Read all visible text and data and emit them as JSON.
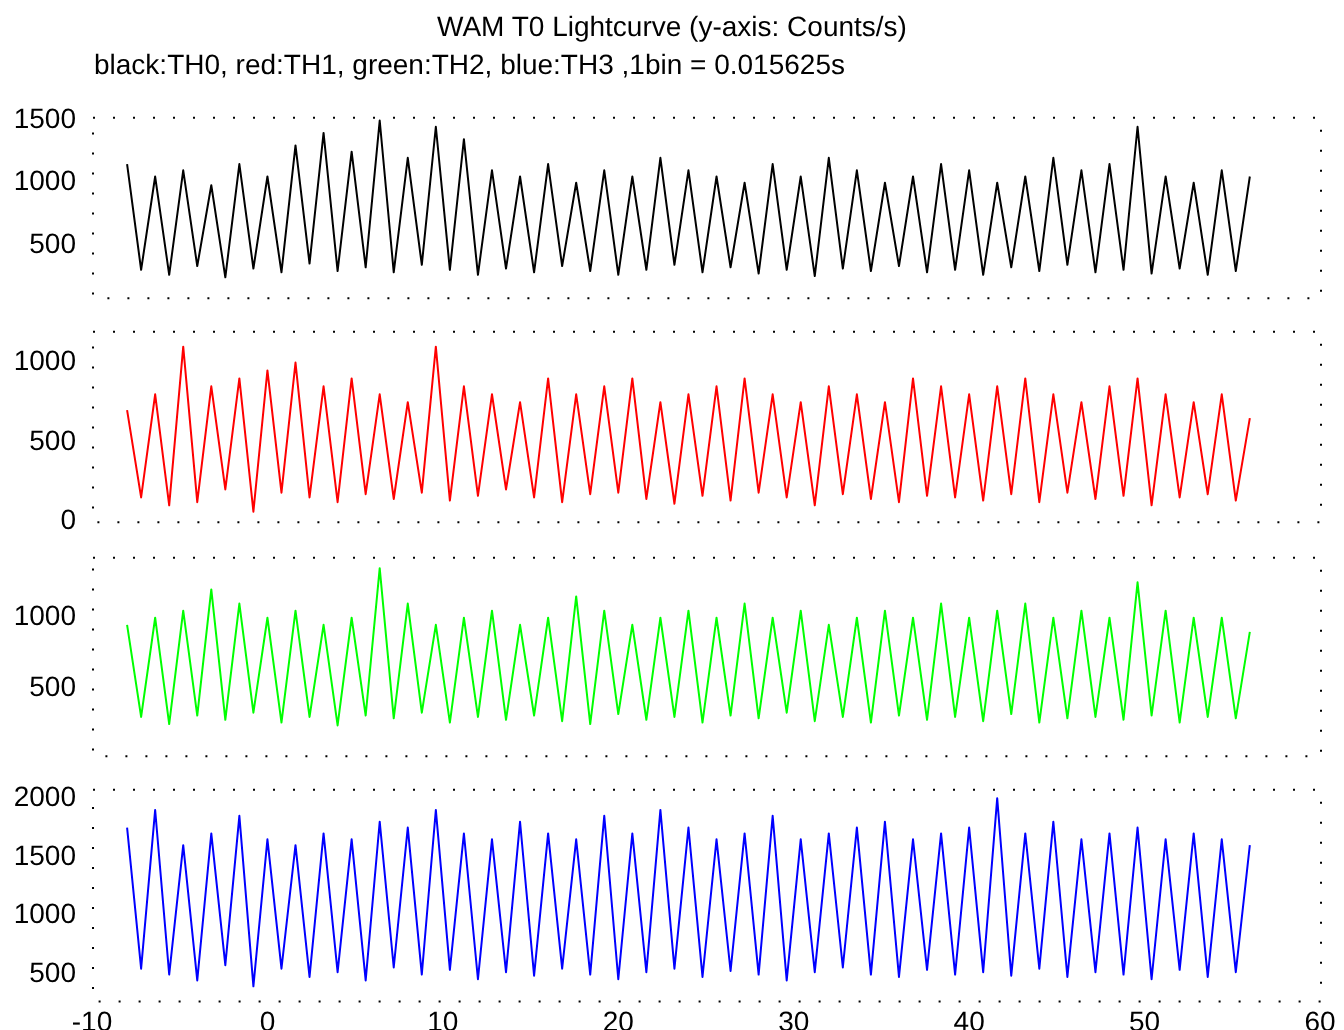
{
  "chart_data": [
    {
      "type": "line",
      "title": "WAM T0 Lightcurve (y-axis: Counts/s)",
      "subtitle": "black:TH0, red:TH1, green:TH2, blue:TH3 ,1bin = 0.015625s",
      "grid": false,
      "legend": false,
      "tick_labels": "y",
      "x": [
        -8,
        -7.2,
        -6.4,
        -5.6,
        -4.8,
        -4,
        -3.2,
        -2.4,
        -1.6,
        -0.8,
        0,
        0.8,
        1.6,
        2.4,
        3.2,
        4,
        4.8,
        5.6,
        6.4,
        7.2,
        8,
        8.8,
        9.6,
        10.4,
        11.2,
        12,
        12.8,
        13.6,
        14.4,
        15.2,
        16,
        16.8,
        17.6,
        18.4,
        19.2,
        20,
        20.8,
        21.6,
        22.4,
        23.2,
        24,
        24.8,
        25.6,
        26.4,
        27.2,
        28,
        28.8,
        29.6,
        30.4,
        31.2,
        32,
        32.8,
        33.6,
        34.4,
        35.2,
        36,
        36.8,
        37.6,
        38.4,
        39.2,
        40,
        40.8,
        41.6,
        42.4,
        43.2,
        44,
        44.8,
        45.6,
        46.4,
        47.2,
        48,
        48.8,
        49.6,
        50.4,
        51.2,
        52,
        52.8,
        53.6,
        54.4,
        55.2,
        56
      ],
      "xlim": [
        -10,
        60
      ],
      "xticks": [
        -10,
        0,
        10,
        20,
        30,
        40,
        50,
        60
      ],
      "ylim": [
        80,
        1530
      ],
      "yticks": [
        500,
        1000,
        1500
      ],
      "series": [
        {
          "color": "#000000",
          "values": [
            1150,
            300,
            1050,
            260,
            1100,
            330,
            980,
            240,
            1150,
            310,
            1050,
            280,
            1300,
            350,
            1400,
            290,
            1250,
            320,
            1500,
            280,
            1200,
            340,
            1450,
            300,
            1350,
            260,
            1100,
            310,
            1050,
            280,
            1150,
            330,
            1000,
            290,
            1100,
            260,
            1050,
            300,
            1200,
            340,
            1100,
            280,
            1050,
            320,
            1000,
            270,
            1150,
            300,
            1050,
            250,
            1200,
            310,
            1100,
            290,
            1000,
            330,
            1050,
            280,
            1150,
            300,
            1100,
            260,
            1000,
            320,
            1050,
            290,
            1200,
            340,
            1100,
            280,
            1150,
            300,
            1450,
            270,
            1050,
            310,
            1000,
            260,
            1100,
            290,
            1050
          ]
        }
      ]
    },
    {
      "type": "line",
      "grid": false,
      "legend": false,
      "tick_labels": "y",
      "x": [
        -8,
        -7.2,
        -6.4,
        -5.6,
        -4.8,
        -4,
        -3.2,
        -2.4,
        -1.6,
        -0.8,
        0,
        0.8,
        1.6,
        2.4,
        3.2,
        4,
        4.8,
        5.6,
        6.4,
        7.2,
        8,
        8.8,
        9.6,
        10.4,
        11.2,
        12,
        12.8,
        13.6,
        14.4,
        15.2,
        16,
        16.8,
        17.6,
        18.4,
        19.2,
        20,
        20.8,
        21.6,
        22.4,
        23.2,
        24,
        24.8,
        25.6,
        26.4,
        27.2,
        28,
        28.8,
        29.6,
        30.4,
        31.2,
        32,
        32.8,
        33.6,
        34.4,
        35.2,
        36,
        36.8,
        37.6,
        38.4,
        39.2,
        40,
        40.8,
        41.6,
        42.4,
        43.2,
        44,
        44.8,
        45.6,
        46.4,
        47.2,
        48,
        48.8,
        49.6,
        50.4,
        51.2,
        52,
        52.8,
        53.6,
        54.4,
        55.2,
        56
      ],
      "xlim": [
        -10,
        60
      ],
      "xticks": [
        -10,
        0,
        10,
        20,
        30,
        40,
        50,
        60
      ],
      "ylim": [
        0,
        1200
      ],
      "yticks": [
        0,
        500,
        1000
      ],
      "series": [
        {
          "color": "#ff0000",
          "values": [
            700,
            150,
            800,
            100,
            1100,
            120,
            850,
            200,
            900,
            60,
            950,
            180,
            1000,
            150,
            850,
            120,
            900,
            170,
            800,
            140,
            750,
            180,
            1100,
            130,
            850,
            160,
            800,
            200,
            750,
            150,
            900,
            120,
            800,
            170,
            850,
            180,
            900,
            140,
            750,
            110,
            800,
            160,
            850,
            130,
            900,
            180,
            800,
            150,
            750,
            100,
            850,
            170,
            800,
            140,
            750,
            120,
            900,
            160,
            850,
            150,
            800,
            130,
            850,
            170,
            900,
            120,
            800,
            180,
            750,
            140,
            850,
            160,
            900,
            100,
            800,
            150,
            750,
            170,
            800,
            130,
            650
          ]
        }
      ]
    },
    {
      "type": "line",
      "grid": false,
      "legend": false,
      "tick_labels": "y",
      "x": [
        -8,
        -7.2,
        -6.4,
        -5.6,
        -4.8,
        -4,
        -3.2,
        -2.4,
        -1.6,
        -0.8,
        0,
        0.8,
        1.6,
        2.4,
        3.2,
        4,
        4.8,
        5.6,
        6.4,
        7.2,
        8,
        8.8,
        9.6,
        10.4,
        11.2,
        12,
        12.8,
        13.6,
        14.4,
        15.2,
        16,
        16.8,
        17.6,
        18.4,
        19.2,
        20,
        20.8,
        21.6,
        22.4,
        23.2,
        24,
        24.8,
        25.6,
        26.4,
        27.2,
        28,
        28.8,
        29.6,
        30.4,
        31.2,
        32,
        32.8,
        33.6,
        34.4,
        35.2,
        36,
        36.8,
        37.6,
        38.4,
        39.2,
        40,
        40.8,
        41.6,
        42.4,
        43.2,
        44,
        44.8,
        45.6,
        46.4,
        47.2,
        48,
        48.8,
        49.6,
        50.4,
        51.2,
        52,
        52.8,
        53.6,
        54.4,
        55.2,
        56
      ],
      "xlim": [
        -10,
        60
      ],
      "xticks": [
        -10,
        0,
        10,
        20,
        30,
        40,
        50,
        60
      ],
      "ylim": [
        30,
        1430
      ],
      "yticks": [
        500,
        1000
      ],
      "series": [
        {
          "color": "#00ff00",
          "values": [
            950,
            300,
            1000,
            250,
            1050,
            310,
            1200,
            280,
            1100,
            330,
            1000,
            260,
            1050,
            300,
            950,
            240,
            1000,
            310,
            1350,
            290,
            1100,
            330,
            950,
            260,
            1000,
            300,
            1050,
            280,
            950,
            310,
            1000,
            270,
            1150,
            250,
            1050,
            320,
            950,
            280,
            1000,
            300,
            1050,
            260,
            1000,
            310,
            1100,
            290,
            1000,
            330,
            1050,
            270,
            950,
            300,
            1000,
            260,
            1050,
            310,
            1000,
            280,
            1100,
            300,
            1000,
            270,
            1050,
            320,
            1100,
            260,
            1000,
            290,
            1050,
            300,
            1000,
            280,
            1250,
            310,
            1050,
            260,
            1000,
            300,
            1000,
            290,
            900
          ]
        }
      ]
    },
    {
      "type": "line",
      "grid": false,
      "legend": false,
      "x": [
        -8,
        -7.2,
        -6.4,
        -5.6,
        -4.8,
        -4,
        -3.2,
        -2.4,
        -1.6,
        -0.8,
        0,
        0.8,
        1.6,
        2.4,
        3.2,
        4,
        4.8,
        5.6,
        6.4,
        7.2,
        8,
        8.8,
        9.6,
        10.4,
        11.2,
        12,
        12.8,
        13.6,
        14.4,
        15.2,
        16,
        16.8,
        17.6,
        18.4,
        19.2,
        20,
        20.8,
        21.6,
        22.4,
        23.2,
        24,
        24.8,
        25.6,
        26.4,
        27.2,
        28,
        28.8,
        29.6,
        30.4,
        31.2,
        32,
        32.8,
        33.6,
        34.4,
        35.2,
        36,
        36.8,
        37.6,
        38.4,
        39.2,
        40,
        40.8,
        41.6,
        42.4,
        43.2,
        44,
        44.8,
        45.6,
        46.4,
        47.2,
        48,
        48.8,
        49.6,
        50.4,
        51.2,
        52,
        52.8,
        53.6,
        54.4,
        55.2,
        56
      ],
      "xlim": [
        -10,
        60
      ],
      "xticks": [
        -10,
        0,
        10,
        20,
        30,
        40,
        50,
        60
      ],
      "ylim": [
        280,
        2080
      ],
      "yticks": [
        500,
        1000,
        1500,
        2000
      ],
      "series": [
        {
          "color": "#0000ff",
          "values": [
            1750,
            550,
            1900,
            500,
            1600,
            450,
            1700,
            580,
            1850,
            400,
            1650,
            550,
            1600,
            480,
            1700,
            520,
            1650,
            450,
            1800,
            560,
            1750,
            500,
            1900,
            540,
            1700,
            460,
            1650,
            520,
            1800,
            490,
            1700,
            550,
            1650,
            500,
            1850,
            460,
            1700,
            520,
            1900,
            550,
            1750,
            480,
            1650,
            530,
            1700,
            500,
            1850,
            450,
            1650,
            520,
            1700,
            560,
            1750,
            500,
            1800,
            480,
            1650,
            540,
            1700,
            500,
            1750,
            520,
            2000,
            490,
            1700,
            550,
            1800,
            480,
            1650,
            520,
            1700,
            500,
            1750,
            460,
            1650,
            540,
            1700,
            480,
            1650,
            520,
            1600
          ]
        }
      ]
    }
  ]
}
